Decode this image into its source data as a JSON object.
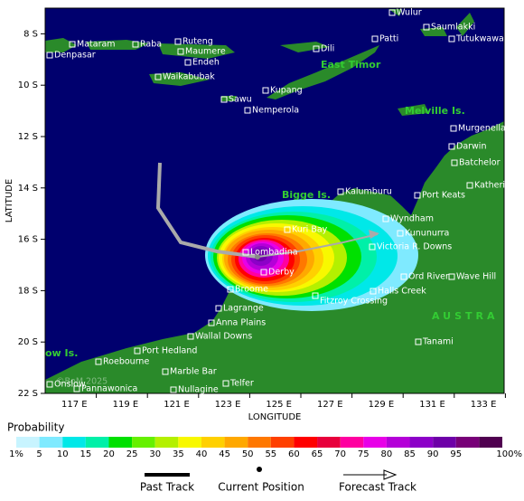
{
  "map": {
    "x_label": "LONGITUDE",
    "y_label": "LATITUDE",
    "x_ticks": [
      "117 E",
      "119 E",
      "121 E",
      "123 E",
      "125 E",
      "127 E",
      "129 E",
      "131 E",
      "133 E"
    ],
    "y_ticks": [
      "8 S",
      "10 S",
      "12 S",
      "14 S",
      "16 S",
      "18 S",
      "20 S",
      "22 S"
    ],
    "places": [
      "Wulur",
      "Saumlakki",
      "Tutukwawang",
      "Mataram",
      "Raba",
      "Ruteng",
      "Patti",
      "Denpasar",
      "Maumere",
      "Dili",
      "Endeh",
      "Waikabubak",
      "Kupang",
      "Sawu",
      "Nemperola",
      "Murgenella",
      "Darwin",
      "Batchelor",
      "Katherine",
      "Kalumburu",
      "Port Keats",
      "Wyndham",
      "Kuri Bay",
      "Kununurra",
      "Victoria R. Downs",
      "Lombadina",
      "Derby",
      "Ord River",
      "Wave Hill",
      "Broome",
      "Halls Creek",
      "Fitzroy Crossing",
      "Lagrange",
      "Anna Plains",
      "Wallal Downs",
      "Tanami",
      "Port Hedland",
      "Roebourne",
      "Marble Bar",
      "Onslow",
      "Pannawonica",
      "Telfer",
      "Nullagine"
    ],
    "regions": [
      "East Timor",
      "Melville Is.",
      "Bigge Is.",
      "AUSTRA",
      "ow Is."
    ],
    "watermark": "©BoM 2025"
  },
  "legend": {
    "title": "Probability",
    "levels": [
      {
        "label": "1%",
        "color": "#c8f4ff"
      },
      {
        "label": "5",
        "color": "#7feaff"
      },
      {
        "label": "10",
        "color": "#00e8e8"
      },
      {
        "label": "15",
        "color": "#00f0a8"
      },
      {
        "label": "20",
        "color": "#00e000"
      },
      {
        "label": "25",
        "color": "#66f000"
      },
      {
        "label": "30",
        "color": "#b4f000"
      },
      {
        "label": "35",
        "color": "#f8f800"
      },
      {
        "label": "40",
        "color": "#ffd000"
      },
      {
        "label": "45",
        "color": "#ffa800"
      },
      {
        "label": "50",
        "color": "#ff7800"
      },
      {
        "label": "55",
        "color": "#ff4000"
      },
      {
        "label": "60",
        "color": "#ff0000"
      },
      {
        "label": "65",
        "color": "#e8003c"
      },
      {
        "label": "70",
        "color": "#ff00a0"
      },
      {
        "label": "75",
        "color": "#e800e8"
      },
      {
        "label": "80",
        "color": "#b400d8"
      },
      {
        "label": "85",
        "color": "#8c00c8"
      },
      {
        "label": "90",
        "color": "#6e00a8"
      },
      {
        "label": "95",
        "color": "#780078"
      },
      {
        "label": "100%",
        "color": "#500050"
      }
    ],
    "keys": [
      "Past Track",
      "Current Position",
      "Forecast Track"
    ]
  }
}
